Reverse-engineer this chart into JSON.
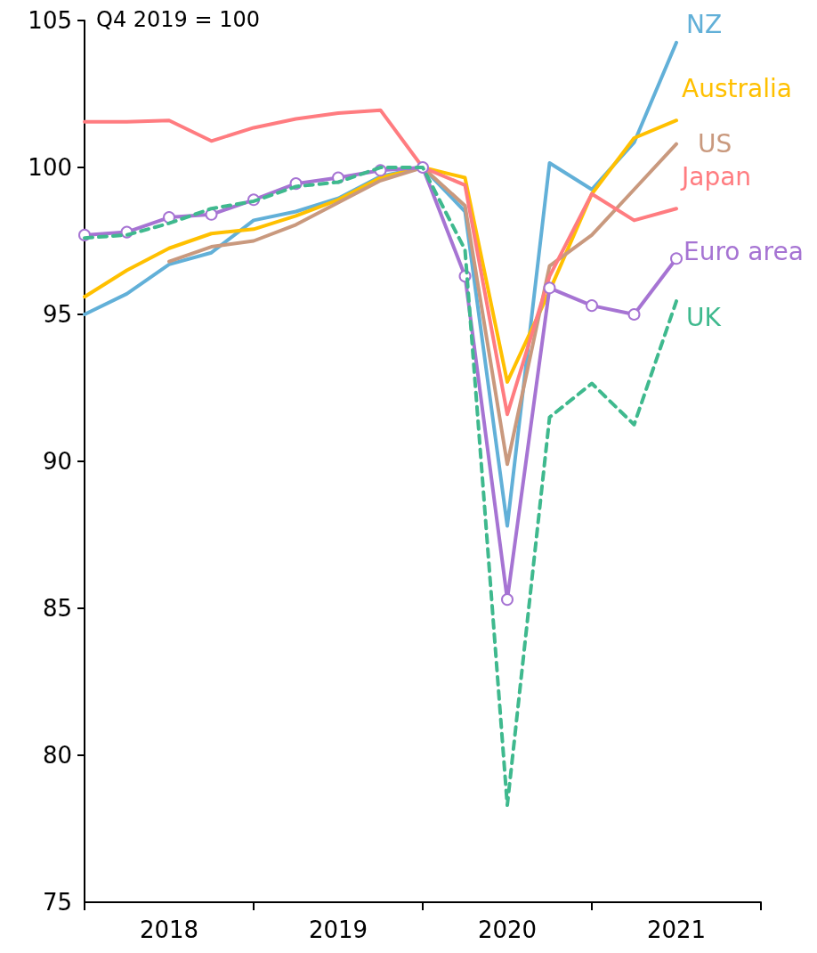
{
  "chart_data": {
    "type": "line",
    "annotations": [
      "Q4 2019 = 100"
    ],
    "x": [
      2018,
      2018.25,
      2018.5,
      2018.75,
      2019,
      2019.25,
      2019.5,
      2019.75,
      2020,
      2020.25,
      2020.5,
      2020.75,
      2021,
      2021.25,
      2021.5
    ],
    "xlim": [
      2018,
      2022
    ],
    "xticks": [
      {
        "value": 2018,
        "label": null
      },
      {
        "value": 2018.5,
        "label": "2018"
      },
      {
        "value": 2019,
        "label": null
      },
      {
        "value": 2019.5,
        "label": "2019"
      },
      {
        "value": 2020,
        "label": null
      },
      {
        "value": 2020.5,
        "label": "2020"
      },
      {
        "value": 2021,
        "label": null
      },
      {
        "value": 2021.5,
        "label": "2021"
      },
      {
        "value": 2022,
        "label": null
      }
    ],
    "ylim": [
      75,
      105
    ],
    "yticks": [
      75,
      80,
      85,
      90,
      95,
      100,
      105
    ],
    "grid": false,
    "legend": false,
    "line_style": "solid",
    "marker": "none",
    "series": [
      {
        "name": "NZ",
        "color": "#62b0d8",
        "values": [
          95.0,
          95.7,
          96.7,
          97.1,
          98.2,
          98.5,
          98.95,
          99.7,
          100,
          98.5,
          87.8,
          100.15,
          99.25,
          100.85,
          104.25
        ]
      },
      {
        "name": "Australia",
        "color": "#ffc000",
        "values": [
          95.6,
          96.5,
          97.25,
          97.75,
          97.9,
          98.35,
          98.9,
          99.65,
          100,
          99.65,
          92.7,
          95.8,
          99.1,
          101.0,
          101.6
        ]
      },
      {
        "name": "US",
        "color": "#c9997e",
        "values": [
          null,
          null,
          96.8,
          97.3,
          97.5,
          98.05,
          98.8,
          99.55,
          100,
          98.7,
          89.9,
          96.65,
          97.7,
          99.25,
          100.8
        ]
      },
      {
        "name": "Japan",
        "color": "#ff7c80",
        "values": [
          101.55,
          101.55,
          101.6,
          100.9,
          101.35,
          101.65,
          101.85,
          101.95,
          100,
          99.4,
          91.6,
          96.3,
          99.1,
          98.2,
          98.6
        ]
      },
      {
        "name": "Euro area",
        "color": "#a674d3",
        "marker": "circle",
        "values": [
          97.7,
          97.8,
          98.3,
          98.4,
          98.9,
          99.45,
          99.65,
          99.9,
          100,
          96.3,
          85.3,
          95.9,
          95.3,
          95.0,
          96.9
        ]
      },
      {
        "name": "UK",
        "color": "#3fb98e",
        "line_style": "dashed",
        "values": [
          97.6,
          97.7,
          98.1,
          98.6,
          98.85,
          99.35,
          99.5,
          100,
          100,
          97.2,
          78.3,
          91.5,
          92.65,
          91.25,
          95.45
        ]
      }
    ]
  }
}
